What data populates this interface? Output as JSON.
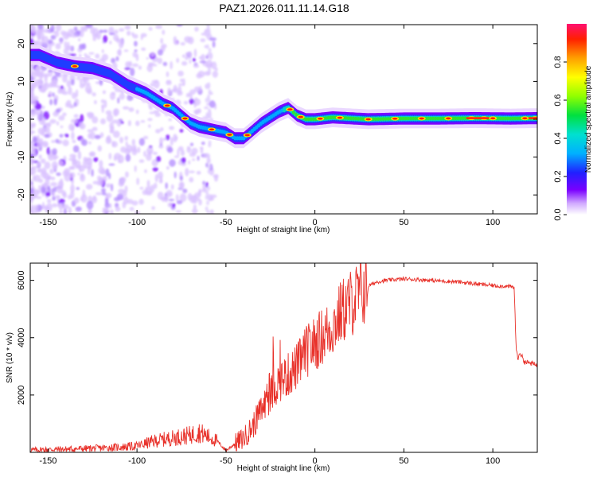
{
  "title": "PAZ1.2026.011.11.14.G18",
  "colorbar_label": "Normalized spectral amplitude",
  "colorbar_ticks": [
    "0.0",
    "0.2",
    "0.4",
    "0.6",
    "0.8"
  ],
  "chart_data": [
    {
      "type": "heatmap",
      "name": "spectrogram",
      "xlabel": "Height of straight line (km)",
      "ylabel": "Frequency (Hz)",
      "xlim": [
        -160,
        125
      ],
      "ylim": [
        -25,
        25
      ],
      "xticks": [
        -150,
        -100,
        -50,
        0,
        50,
        100
      ],
      "xtick_labels": [
        "-150",
        "-100",
        "-50",
        "0",
        "50",
        "100"
      ],
      "yticks": [
        20,
        10,
        0,
        -10,
        -20
      ],
      "ytick_labels": [
        "20",
        "10",
        "0",
        "-10",
        "-20"
      ],
      "colorbar_range": [
        0,
        1
      ],
      "ridge": {
        "x": [
          -155,
          -145,
          -135,
          -125,
          -115,
          -105,
          -95,
          -85,
          -80,
          -75,
          -70,
          -65,
          -60,
          -55,
          -50,
          -45,
          -40,
          -35,
          -30,
          -25,
          -20,
          -15,
          -10,
          -5,
          0,
          10,
          30,
          50,
          70,
          90,
          110,
          125
        ],
        "y": [
          17,
          15,
          14,
          13.5,
          12,
          9,
          7,
          4,
          3,
          1,
          -1,
          -2,
          -2.5,
          -3,
          -3.5,
          -5,
          -5,
          -3,
          -1,
          0.5,
          2,
          3,
          1,
          0,
          0,
          0.5,
          0,
          0.2,
          0.2,
          0.3,
          0.2,
          0.3
        ]
      }
    },
    {
      "type": "line",
      "name": "snr",
      "xlabel": "Height of straight line (km)",
      "ylabel": "SNR (10 * v/v)",
      "xlim": [
        -160,
        125
      ],
      "ylim": [
        0,
        6600
      ],
      "xticks": [
        -150,
        -100,
        -50,
        0,
        50,
        100
      ],
      "xtick_labels": [
        "-150",
        "-100",
        "-50",
        "0",
        "50",
        "100"
      ],
      "yticks": [
        2000,
        4000,
        6000
      ],
      "ytick_labels": [
        "2000",
        "4000",
        "6000"
      ],
      "color": "#e8312a",
      "series": [
        {
          "name": "SNR",
          "x": [
            -160,
            -150,
            -140,
            -130,
            -120,
            -110,
            -100,
            -90,
            -80,
            -70,
            -65,
            -60,
            -55,
            -50,
            -45,
            -40,
            -35,
            -30,
            -25,
            -20,
            -15,
            -10,
            -5,
            0,
            5,
            10,
            15,
            20,
            25,
            30,
            35,
            40,
            50,
            60,
            70,
            80,
            90,
            100,
            105,
            110,
            112,
            113,
            114,
            115,
            118,
            125
          ],
          "y": [
            80,
            100,
            110,
            130,
            150,
            180,
            220,
            400,
            500,
            600,
            700,
            550,
            400,
            60,
            300,
            500,
            900,
            1500,
            2000,
            2500,
            2700,
            3000,
            3500,
            3800,
            4100,
            4400,
            4900,
            5200,
            5500,
            5800,
            5950,
            6000,
            6050,
            6020,
            5980,
            5950,
            5880,
            5820,
            5800,
            5780,
            5750,
            3800,
            3200,
            3500,
            3150,
            3050
          ]
        }
      ]
    }
  ]
}
